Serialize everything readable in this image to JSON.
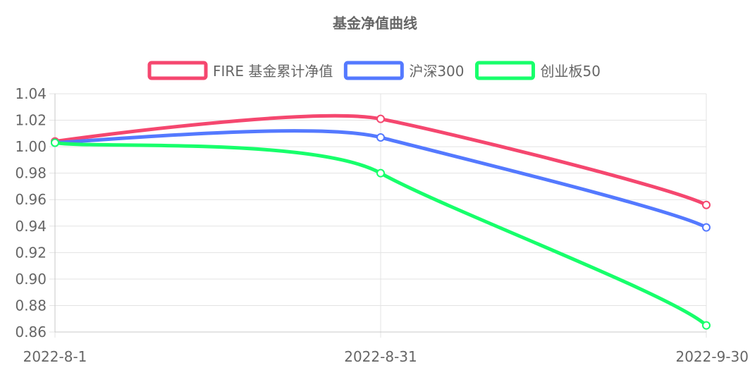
{
  "chart_data": {
    "type": "line",
    "title": "基金净值曲线",
    "categories": [
      "2022-8-1",
      "2022-8-31",
      "2022-9-30"
    ],
    "series": [
      {
        "name": "FIRE 基金累计净值",
        "color": "#f5476f",
        "values": [
          1.004,
          1.021,
          0.956
        ]
      },
      {
        "name": "沪深300",
        "color": "#5479ff",
        "values": [
          1.003,
          1.007,
          0.939
        ]
      },
      {
        "name": "创业板50",
        "color": "#17ff6b",
        "values": [
          1.003,
          0.98,
          0.865
        ]
      }
    ],
    "ylim": [
      0.86,
      1.04
    ],
    "yticks": [
      "1.04",
      "1.02",
      "1.00",
      "0.98",
      "0.96",
      "0.94",
      "0.92",
      "0.90",
      "0.88",
      "0.86"
    ],
    "legend_position": "top",
    "grid": true,
    "smooth": true
  }
}
